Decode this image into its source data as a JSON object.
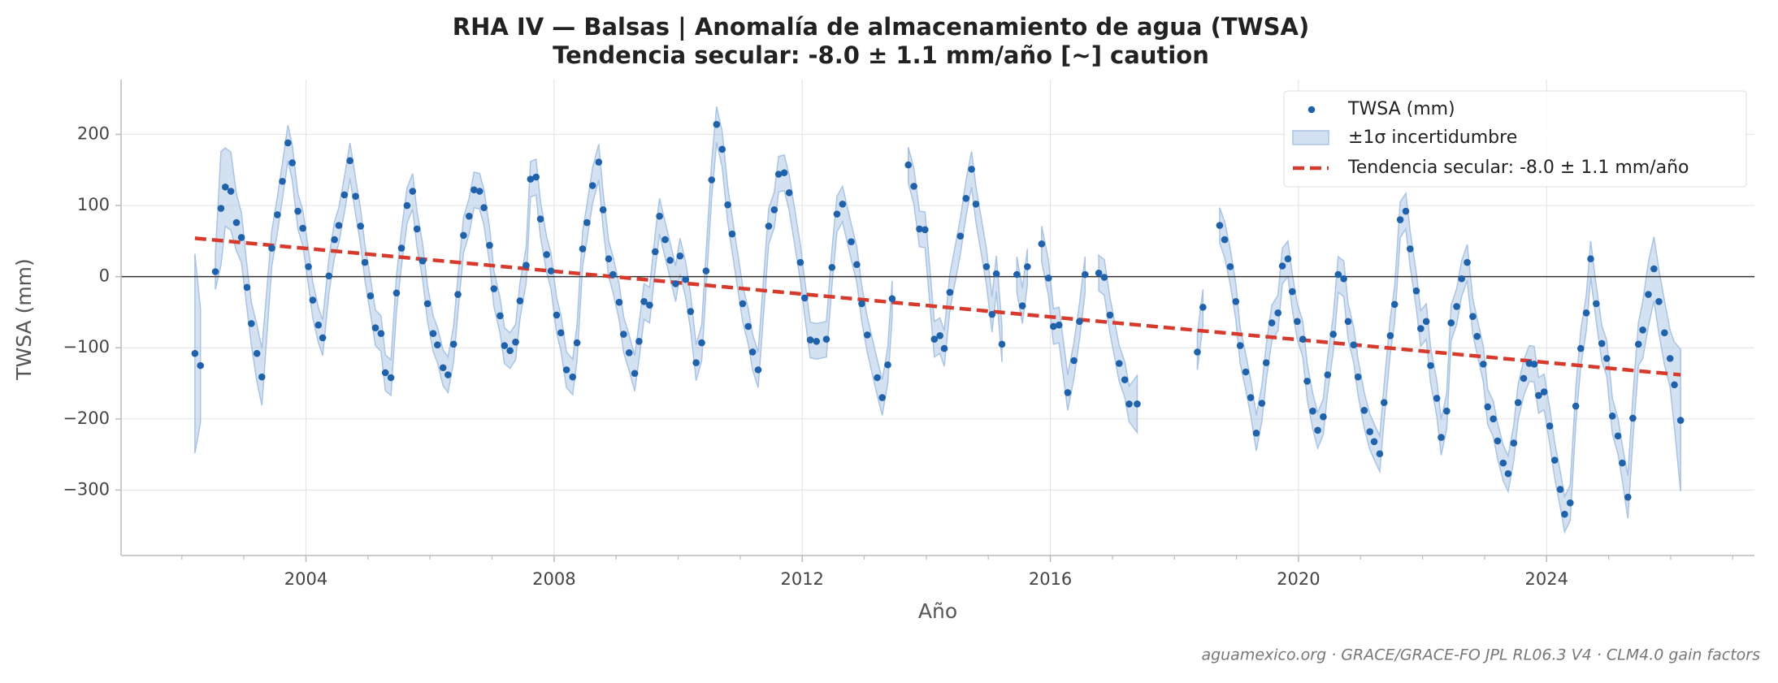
{
  "chart_data": {
    "type": "scatter",
    "title": [
      "RHA IV — Balsas  |  Anomalía de almacenamiento de agua (TWSA)",
      "Tendencia secular: -8.0 ± 1.1 mm/año  [~] caution"
    ],
    "x_label": "Año",
    "y_label": "TWSA (mm)",
    "footer": "aguamexico.org · GRACE/GRACE-FO JPL RL06.3 V4 · CLM4.0 gain factors",
    "xlim": [
      2001.02,
      2027.35
    ],
    "ylim": [
      -392,
      277
    ],
    "xticks": [
      2004,
      2008,
      2012,
      2016,
      2020,
      2024
    ],
    "xticks_minor": [
      2002,
      2003,
      2005,
      2006,
      2007,
      2009,
      2010,
      2011,
      2013,
      2014,
      2015,
      2017,
      2018,
      2019,
      2021,
      2022,
      2023,
      2025,
      2026,
      2027
    ],
    "yticks": [
      {
        "value": -300,
        "label": "−300"
      },
      {
        "value": -200,
        "label": "−200"
      },
      {
        "value": -100,
        "label": "−100"
      },
      0,
      100,
      200
    ],
    "grid": true,
    "hline": 0,
    "legend": "upper right",
    "x": [
      2002.21,
      2002.3,
      2002.54,
      2002.63,
      2002.7,
      2002.79,
      2002.88,
      2002.96,
      2003.05,
      2003.12,
      2003.21,
      2003.29,
      2003.45,
      2003.54,
      2003.62,
      2003.71,
      2003.78,
      2003.87,
      2003.95,
      2004.04,
      2004.11,
      2004.2,
      2004.27,
      2004.37,
      2004.46,
      2004.53,
      2004.62,
      2004.71,
      2004.8,
      2004.88,
      2004.95,
      2005.04,
      2005.12,
      2005.21,
      2005.28,
      2005.37,
      2005.46,
      2005.54,
      2005.63,
      2005.72,
      2005.79,
      2005.88,
      2005.96,
      2006.05,
      2006.12,
      2006.21,
      2006.29,
      2006.38,
      2006.45,
      2006.54,
      2006.63,
      2006.71,
      2006.8,
      2006.87,
      2006.96,
      2007.03,
      2007.13,
      2007.2,
      2007.29,
      2007.38,
      2007.45,
      2007.55,
      2007.62,
      2007.71,
      2007.78,
      2007.88,
      2007.95,
      2008.04,
      2008.11,
      2008.2,
      2008.3,
      2008.37,
      2008.46,
      2008.53,
      2008.62,
      2008.72,
      2008.79,
      2008.88,
      2008.95,
      2009.05,
      2009.12,
      2009.21,
      2009.3,
      2009.37,
      2009.45,
      2009.54,
      2009.63,
      2009.7,
      2009.79,
      2009.87,
      2009.96,
      2010.03,
      2010.12,
      2010.2,
      2010.29,
      2010.38,
      2010.45,
      2010.54,
      2010.62,
      2010.71,
      2010.8,
      2010.87,
      2011.04,
      2011.13,
      2011.2,
      2011.29,
      2011.46,
      2011.55,
      2011.62,
      2011.71,
      2011.79,
      2011.97,
      2012.04,
      2012.13,
      2012.23,
      2012.39,
      2012.48,
      2012.56,
      2012.65,
      2012.79,
      2012.88,
      2012.96,
      2013.05,
      2013.21,
      2013.29,
      2013.38,
      2013.45,
      2013.71,
      2013.8,
      2013.89,
      2013.98,
      2014.13,
      2014.22,
      2014.29,
      2014.38,
      2014.55,
      2014.64,
      2014.73,
      2014.8,
      2014.97,
      2015.06,
      2015.13,
      2015.22,
      2015.46,
      2015.55,
      2015.63,
      2015.86,
      2015.97,
      2016.05,
      2016.14,
      2016.28,
      2016.38,
      2016.47,
      2016.56,
      2016.78,
      2016.87,
      2016.96,
      2017.11,
      2017.2,
      2017.27,
      2017.4,
      2018.37,
      2018.46,
      2018.73,
      2018.81,
      2018.9,
      2018.99,
      2019.06,
      2019.15,
      2019.23,
      2019.32,
      2019.41,
      2019.48,
      2019.57,
      2019.67,
      2019.74,
      2019.83,
      2019.9,
      2019.98,
      2020.07,
      2020.14,
      2020.23,
      2020.31,
      2020.4,
      2020.47,
      2020.56,
      2020.64,
      2020.73,
      2020.8,
      2020.89,
      2020.96,
      2021.06,
      2021.15,
      2021.22,
      2021.31,
      2021.38,
      2021.48,
      2021.55,
      2021.64,
      2021.73,
      2021.8,
      2021.9,
      2021.97,
      2022.06,
      2022.13,
      2022.23,
      2022.3,
      2022.39,
      2022.46,
      2022.55,
      2022.63,
      2022.72,
      2022.81,
      2022.88,
      2022.98,
      2023.05,
      2023.14,
      2023.21,
      2023.3,
      2023.38,
      2023.47,
      2023.54,
      2023.63,
      2023.72,
      2023.8,
      2023.87,
      2023.96,
      2024.05,
      2024.13,
      2024.22,
      2024.29,
      2024.38,
      2024.47,
      2024.55,
      2024.64,
      2024.71,
      2024.8,
      2024.89,
      2024.97,
      2025.06,
      2025.15,
      2025.22,
      2025.31,
      2025.39,
      2025.48,
      2025.55,
      2025.64,
      2025.73,
      2025.81,
      2025.9,
      2025.99,
      2026.06,
      2026.16
    ],
    "series": [
      {
        "name": "TWSA (mm)",
        "color": "#1f62ab",
        "values": [
          -108,
          -125,
          7,
          96,
          126,
          120,
          76,
          55,
          -15,
          -66,
          -108,
          -141,
          40,
          87,
          134,
          188,
          160,
          92,
          68,
          14,
          -33,
          -68,
          -86,
          1,
          52,
          72,
          115,
          163,
          113,
          71,
          20,
          -27,
          -72,
          -80,
          -135,
          -142,
          -23,
          40,
          100,
          120,
          67,
          22,
          -38,
          -80,
          -96,
          -128,
          -138,
          -95,
          -25,
          58,
          85,
          122,
          120,
          97,
          44,
          -17,
          -55,
          -97,
          -104,
          -92,
          -34,
          16,
          137,
          140,
          81,
          31,
          8,
          -54,
          -79,
          -131,
          -141,
          -93,
          39,
          76,
          128,
          161,
          94,
          25,
          3,
          -36,
          -81,
          -107,
          -136,
          -91,
          -35,
          -40,
          35,
          85,
          52,
          23,
          -10,
          29,
          -4,
          -49,
          -121,
          -93,
          8,
          136,
          214,
          179,
          101,
          60,
          -38,
          -70,
          -106,
          -131,
          71,
          94,
          144,
          146,
          118,
          20,
          -30,
          -89,
          -91,
          -88,
          13,
          88,
          102,
          49,
          17,
          -38,
          -82,
          -142,
          -170,
          -124,
          -31,
          157,
          127,
          67,
          66,
          -88,
          -83,
          -101,
          -22,
          57,
          110,
          151,
          102,
          14,
          -53,
          4,
          -95,
          3,
          -41,
          14,
          46,
          -2,
          -70,
          -68,
          -163,
          -118,
          -63,
          3,
          5,
          -1,
          -54,
          -122,
          -145,
          -179,
          -179,
          -106,
          -43,
          72,
          52,
          14,
          -35,
          -97,
          -134,
          -170,
          -220,
          -178,
          -121,
          -65,
          -51,
          15,
          25,
          -21,
          -63,
          -88,
          -147,
          -189,
          -216,
          -197,
          -138,
          -81,
          3,
          -3,
          -63,
          -96,
          -141,
          -188,
          -218,
          -232,
          -249,
          -177,
          -83,
          -39,
          80,
          92,
          39,
          -20,
          -73,
          -63,
          -125,
          -171,
          -226,
          -189,
          -65,
          -42,
          -3,
          20,
          -56,
          -84,
          -123,
          -183,
          -200,
          -231,
          -262,
          -277,
          -234,
          -177,
          -143,
          -122,
          -123,
          -167,
          -162,
          -210,
          -258,
          -299,
          -334,
          -318,
          -182,
          -101,
          -51,
          25,
          -38,
          -94,
          -115,
          -196,
          -224,
          -262,
          -310,
          -199,
          -95,
          -75,
          -25,
          11,
          -35,
          -79,
          -115,
          -152,
          -202
        ]
      }
    ],
    "band": {
      "name": "±1σ incertidumbre",
      "color": "#a9c4e4",
      "errors": [
        140,
        80,
        25,
        80,
        55,
        55,
        40,
        35,
        30,
        30,
        40,
        40,
        25,
        25,
        25,
        25,
        25,
        25,
        25,
        25,
        25,
        25,
        25,
        25,
        25,
        25,
        25,
        25,
        25,
        25,
        25,
        25,
        25,
        25,
        25,
        25,
        25,
        25,
        25,
        25,
        25,
        25,
        25,
        25,
        25,
        25,
        25,
        25,
        25,
        25,
        25,
        25,
        25,
        25,
        25,
        25,
        25,
        25,
        25,
        25,
        25,
        25,
        25,
        25,
        25,
        25,
        25,
        25,
        25,
        25,
        25,
        25,
        25,
        25,
        25,
        25,
        25,
        25,
        25,
        25,
        25,
        25,
        25,
        25,
        25,
        25,
        25,
        25,
        25,
        25,
        25,
        25,
        25,
        25,
        25,
        25,
        25,
        25,
        25,
        25,
        25,
        25,
        25,
        25,
        25,
        25,
        25,
        25,
        25,
        25,
        25,
        25,
        25,
        25,
        25,
        25,
        25,
        25,
        25,
        25,
        25,
        25,
        25,
        25,
        25,
        25,
        25,
        25,
        25,
        25,
        25,
        25,
        25,
        25,
        25,
        25,
        25,
        25,
        25,
        25,
        25,
        25,
        25,
        25,
        25,
        25,
        25,
        25,
        25,
        25,
        25,
        25,
        25,
        25,
        25,
        25,
        25,
        25,
        25,
        25,
        40,
        25,
        25,
        25,
        25,
        25,
        25,
        25,
        25,
        25,
        25,
        25,
        25,
        25,
        25,
        25,
        25,
        25,
        25,
        25,
        25,
        25,
        25,
        25,
        25,
        25,
        25,
        25,
        25,
        25,
        25,
        25,
        25,
        25,
        25,
        25,
        25,
        25,
        25,
        25,
        25,
        25,
        25,
        25,
        25,
        25,
        25,
        25,
        25,
        25,
        25,
        25,
        25,
        25,
        25,
        25,
        25,
        25,
        25,
        25,
        25,
        25,
        25,
        25,
        25,
        25,
        25,
        25,
        25,
        25,
        25,
        25,
        25,
        25,
        25,
        25,
        25,
        25,
        25,
        25,
        25,
        25,
        30,
        30,
        30,
        40,
        45,
        45,
        45,
        45,
        40,
        60,
        100
      ]
    },
    "trend": {
      "name": "Tendencia secular: -8.0 ± 1.1 mm/año",
      "color": "#d63a2c",
      "x": [
        2002.21,
        2026.16
      ],
      "values": [
        54,
        -138
      ]
    }
  }
}
